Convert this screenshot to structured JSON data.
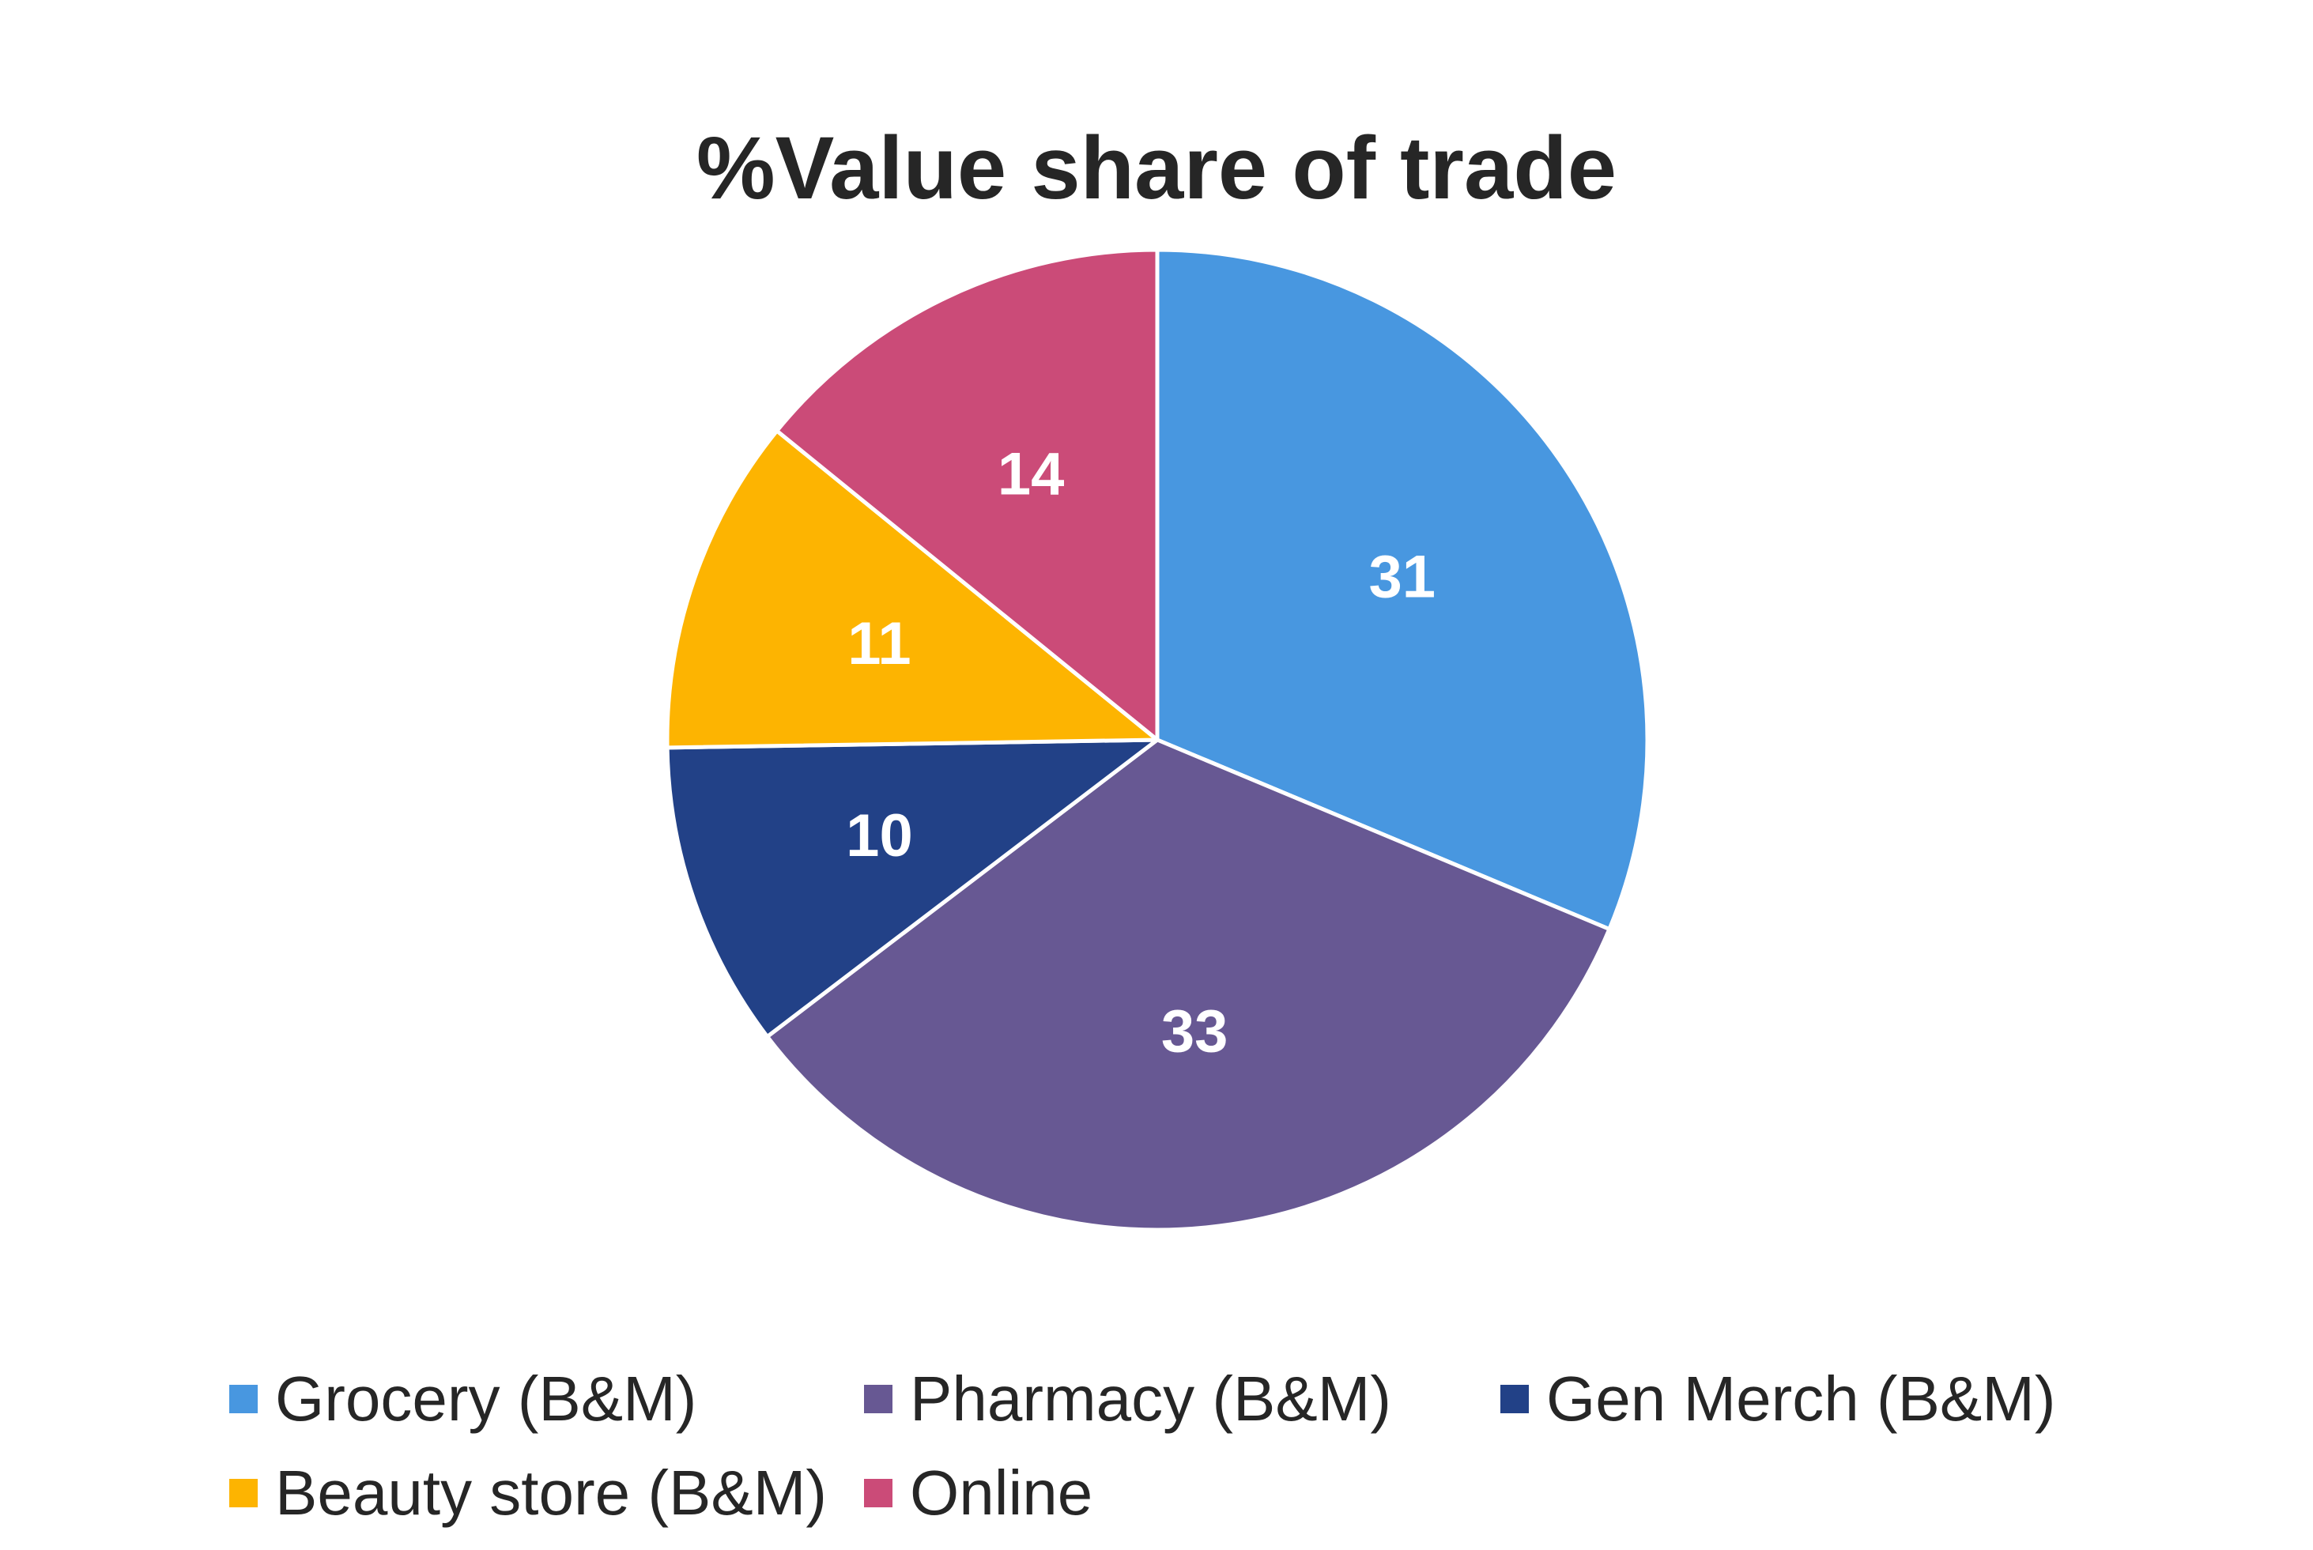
{
  "chart_data": {
    "type": "pie",
    "title": "%Value share of trade",
    "start_angle_deg": 0,
    "direction": "clockwise",
    "slices": [
      {
        "label": "Grocery (B&M)",
        "value": 31,
        "data_label": "31",
        "color": "#4897E0"
      },
      {
        "label": "Pharmacy (B&M)",
        "value": 33,
        "data_label": "33",
        "color": "#675893"
      },
      {
        "label": "Gen Merch (B&M)",
        "value": 10,
        "data_label": "10",
        "color": "#224187"
      },
      {
        "label": "Beauty store (B&M)",
        "value": 11,
        "data_label": "11",
        "color": "#FDB401"
      },
      {
        "label": "Online",
        "value": 14,
        "data_label": "14",
        "color": "#CB4B78"
      }
    ],
    "legend_position": "bottom",
    "slice_border_color": "#ffffff"
  }
}
